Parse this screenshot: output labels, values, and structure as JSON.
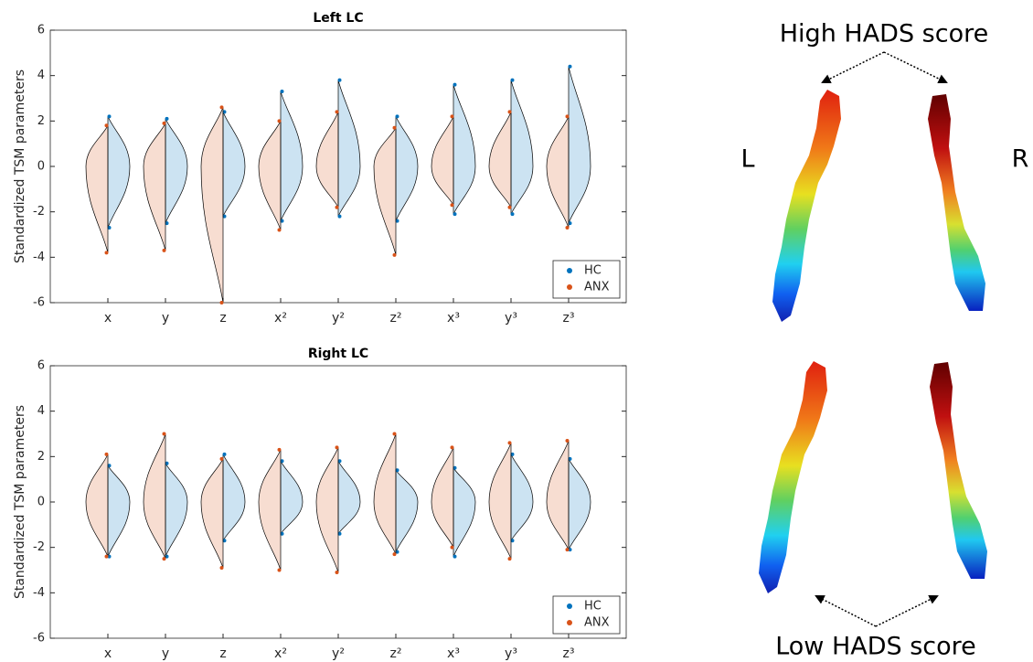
{
  "chart_data": [
    {
      "type": "violin",
      "title": "Left LC",
      "ylabel": "Standardized TSM parameters",
      "categories": [
        "x",
        "y",
        "z",
        "x²",
        "y²",
        "z²",
        "x³",
        "y³",
        "z³"
      ],
      "series": [
        {
          "name": "HC",
          "color": "#0072bd",
          "min": [
            -2.7,
            -2.5,
            -2.2,
            -2.4,
            -2.2,
            -2.4,
            -2.1,
            -2.1,
            -2.5
          ],
          "max": [
            2.2,
            2.1,
            2.4,
            3.3,
            3.8,
            2.2,
            3.6,
            3.8,
            4.4
          ]
        },
        {
          "name": "ANX",
          "color": "#d95319",
          "min": [
            -3.8,
            -3.7,
            -6.0,
            -2.8,
            -1.8,
            -3.9,
            -1.7,
            -1.8,
            -2.7
          ],
          "max": [
            1.8,
            1.9,
            2.6,
            2.0,
            2.4,
            1.7,
            2.2,
            2.4,
            2.2
          ]
        }
      ],
      "ylim": [
        -6,
        6
      ],
      "yticks": [
        -6,
        -4,
        -2,
        0,
        2,
        4,
        6
      ],
      "legend": "lower right"
    },
    {
      "type": "violin",
      "title": "Right LC",
      "ylabel": "Standardized TSM parameters",
      "categories": [
        "x",
        "y",
        "z",
        "x²",
        "y²",
        "z²",
        "x³",
        "y³",
        "z³"
      ],
      "series": [
        {
          "name": "HC",
          "color": "#0072bd",
          "min": [
            -2.4,
            -2.4,
            -1.7,
            -1.4,
            -1.4,
            -2.2,
            -2.4,
            -1.7,
            -2.1
          ],
          "max": [
            1.6,
            1.7,
            2.1,
            1.8,
            1.8,
            1.4,
            1.5,
            2.1,
            1.9
          ]
        },
        {
          "name": "ANX",
          "color": "#d95319",
          "min": [
            -2.4,
            -2.5,
            -2.9,
            -3.0,
            -3.1,
            -2.3,
            -2.0,
            -2.5,
            -2.1
          ],
          "max": [
            2.1,
            3.0,
            1.9,
            2.3,
            2.4,
            3.0,
            2.4,
            2.6,
            2.7
          ]
        }
      ],
      "ylim": [
        -6,
        6
      ],
      "yticks": [
        -6,
        -4,
        -2,
        0,
        2,
        4,
        6
      ],
      "legend": "lower right"
    }
  ],
  "figure_labels": {
    "high": "High HADS score",
    "low": "Low HADS score",
    "left": "L",
    "right": "R"
  }
}
